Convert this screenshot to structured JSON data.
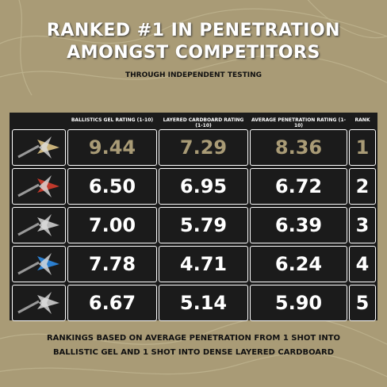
{
  "header": {
    "title_lines": [
      "RANKED #1 IN PENETRATION",
      "AMONGST COMPETITORS"
    ],
    "subtitle": "THROUGH INDEPENDENT TESTING"
  },
  "table": {
    "columns": [
      "BALLISTICS GEL RATING (1-10)",
      "LAYERED CARDBOARD RATING (1-10)",
      "AVERAGE PENETRATION RATING (1-10)",
      "RANK"
    ],
    "rows": [
      [
        "9.44",
        "7.29",
        "8.36",
        "1"
      ],
      [
        "6.50",
        "6.95",
        "6.72",
        "2"
      ],
      [
        "7.00",
        "5.79",
        "6.39",
        "3"
      ],
      [
        "7.78",
        "4.71",
        "6.24",
        "4"
      ],
      [
        "6.67",
        "5.14",
        "5.90",
        "5"
      ]
    ]
  },
  "footer": {
    "lines": [
      "RANKINGS BASED ON AVERAGE PENETRATION FROM 1 SHOT INTO",
      "BALLISTIC GEL AND 1 SHOT INTO DENSE LAYERED CARDBOARD"
    ]
  }
}
